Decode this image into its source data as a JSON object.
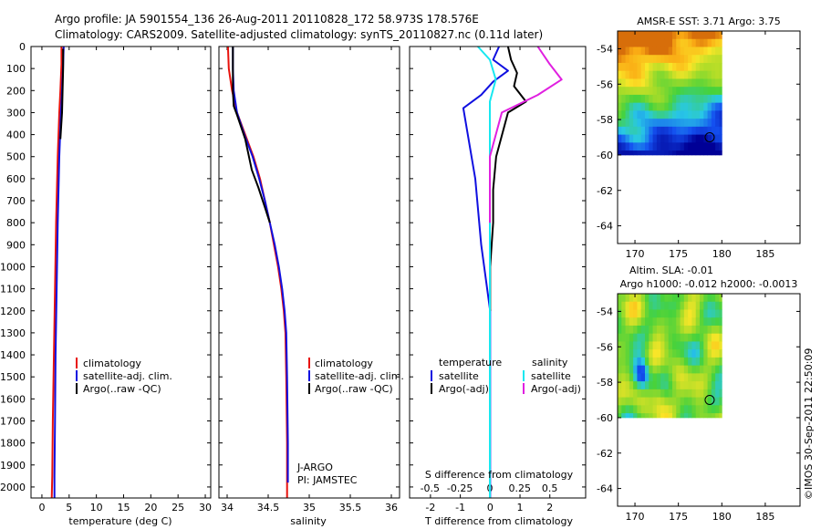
{
  "header": {
    "line1": "Argo profile: JA 5901554_136 26-Aug-2011 20110828_172 58.973S 178.576E",
    "line2": "Climatology: CARS2009. Satellite-adjusted climatology: synTS_20110827.nc (0.11d later)"
  },
  "watermark": "©IMOS 30-Sep-2011 22:50:09",
  "colors": {
    "climatology": "#e8120c",
    "satellite": "#1010e0",
    "argo": "#000000",
    "satellite_diff_S": "#18e8f0",
    "argo_diff_S": "#e020e0"
  },
  "depth_axis": {
    "ylim": [
      0,
      2050
    ],
    "ticks": [
      0,
      100,
      200,
      300,
      400,
      500,
      600,
      700,
      800,
      900,
      1000,
      1100,
      1200,
      1300,
      1400,
      1500,
      1600,
      1700,
      1800,
      1900,
      2000
    ]
  },
  "chart_data": [
    {
      "type": "line",
      "id": "temperature",
      "xlabel": "temperature (deg C)",
      "xlim": [
        -2,
        31
      ],
      "xticks": [
        0,
        5,
        10,
        15,
        20,
        25,
        30
      ],
      "legend": [
        "climatology",
        "satellite-adj. clim.",
        "Argo(..raw -QC)"
      ],
      "series": [
        {
          "name": "climatology",
          "color": "#e8120c",
          "x": [
            3.6,
            3.6,
            3.4,
            3.2,
            2.9,
            2.6,
            2.4,
            2.2,
            2.0,
            1.9,
            1.8
          ],
          "y": [
            0,
            80,
            200,
            300,
            500,
            800,
            1100,
            1400,
            1700,
            1950,
            2050
          ]
        },
        {
          "name": "satellite-adj. clim.",
          "color": "#1010e0",
          "x": [
            4.0,
            3.9,
            3.7,
            3.5,
            3.2,
            2.9,
            2.7,
            2.5,
            2.4,
            2.3,
            2.3
          ],
          "y": [
            0,
            80,
            200,
            300,
            500,
            800,
            1100,
            1400,
            1700,
            1950,
            2050
          ]
        },
        {
          "name": "Argo(..raw -QC)",
          "color": "#000000",
          "x": [
            3.9,
            3.9,
            3.8,
            3.7,
            3.4
          ],
          "y": [
            10,
            100,
            200,
            300,
            420
          ]
        }
      ]
    },
    {
      "type": "line",
      "id": "salinity",
      "xlabel": "salinity",
      "xlim": [
        33.9,
        36.1
      ],
      "xticks": [
        34,
        34.5,
        35,
        35.5,
        36
      ],
      "legend": [
        "climatology",
        "satellite-adj. clim.",
        "Argo(..raw -QC)"
      ],
      "annotation": [
        "J-ARGO",
        "PI: JAMSTEC"
      ],
      "series": [
        {
          "name": "climatology",
          "color": "#e8120c",
          "x": [
            34.01,
            34.02,
            34.06,
            34.12,
            34.22,
            34.32,
            34.4,
            34.46,
            34.52,
            34.57,
            34.62,
            34.66,
            34.69,
            34.71,
            34.72,
            34.73,
            34.73
          ],
          "y": [
            0,
            100,
            200,
            300,
            400,
            500,
            600,
            700,
            800,
            900,
            1000,
            1100,
            1200,
            1300,
            1500,
            1800,
            2050
          ]
        },
        {
          "name": "satellite-adj. clim.",
          "color": "#1010e0",
          "x": [
            34.07,
            34.07,
            34.08,
            34.12,
            34.21,
            34.31,
            34.39,
            34.46,
            34.52,
            34.58,
            34.63,
            34.67,
            34.7,
            34.72,
            34.73,
            34.74,
            34.74
          ],
          "y": [
            0,
            100,
            200,
            300,
            400,
            500,
            600,
            700,
            800,
            900,
            1000,
            1100,
            1200,
            1300,
            1500,
            1800,
            1980
          ]
        },
        {
          "name": "Argo(..raw -QC)",
          "color": "#000000",
          "x": [
            34.07,
            34.07,
            34.07,
            34.08,
            34.12,
            34.22,
            34.3,
            34.38,
            34.46,
            34.52
          ],
          "y": [
            0,
            100,
            200,
            270,
            310,
            420,
            560,
            640,
            730,
            800
          ]
        }
      ]
    },
    {
      "type": "line",
      "id": "difference",
      "xlabel": "T difference from climatology",
      "x2label": "S difference from climatology",
      "xlim": [
        -2.7,
        3.2
      ],
      "xticks": [
        -2,
        -1,
        0,
        1,
        2
      ],
      "x2ticks": [
        -0.5,
        -0.25,
        0,
        0.25,
        0.5
      ],
      "legend_temperature_title": "temperature",
      "legend_salinity_title": "salinity",
      "legend_temperature": [
        "satellite",
        "Argo(-adj)"
      ],
      "legend_salinity": [
        "satellite",
        "Argo(-adj)"
      ],
      "series": [
        {
          "name": "T satellite",
          "color": "#1010e0",
          "x": [
            0.3,
            0.1,
            0.6,
            0.1,
            -0.3,
            -0.9,
            -0.5,
            -0.3,
            0.0,
            0.0,
            0.0
          ],
          "y": [
            0,
            60,
            110,
            160,
            220,
            280,
            600,
            900,
            1200,
            1600,
            2050
          ]
        },
        {
          "name": "T Argo(-adj)",
          "color": "#000000",
          "x": [
            0.6,
            0.7,
            0.9,
            0.8,
            1.2,
            0.6,
            0.2,
            0.1,
            0.1,
            0.0,
            0.0
          ],
          "y": [
            0,
            60,
            120,
            180,
            250,
            300,
            500,
            650,
            800,
            1000,
            1200
          ]
        },
        {
          "name": "S satellite",
          "color": "#18e8f0",
          "x": [
            -0.1,
            0.0,
            0.05,
            0.0,
            0.0,
            0.0,
            0.0,
            0.0,
            0.0
          ],
          "y": [
            0,
            60,
            150,
            250,
            400,
            700,
            1100,
            1600,
            2050
          ]
        },
        {
          "name": "S Argo(-adj)",
          "color": "#e020e0",
          "x": [
            0.4,
            0.5,
            0.6,
            0.4,
            0.1,
            0.0,
            0.0
          ],
          "y": [
            0,
            80,
            150,
            220,
            300,
            500,
            800
          ]
        }
      ]
    },
    {
      "type": "heatmap",
      "id": "sst_map",
      "title": "AMSR-E SST: 3.71  Argo: 3.75",
      "xlim": [
        168,
        189
      ],
      "ylim": [
        -65,
        -53
      ],
      "xticks": [
        170,
        175,
        180,
        185
      ],
      "yticks": [
        -54,
        -56,
        -58,
        -60,
        -62,
        -64
      ],
      "data_extent": {
        "lon": [
          168,
          180
        ],
        "lat": [
          -60,
          -53
        ]
      },
      "marker": {
        "lon": 178.6,
        "lat": -59.0
      }
    },
    {
      "type": "heatmap",
      "id": "sla_map",
      "title": "Altim. SLA: -0.01",
      "subtitle": "Argo h1000: -0.012 h2000: -0.0013",
      "xlim": [
        168,
        189
      ],
      "ylim": [
        -65,
        -53
      ],
      "xticks": [
        170,
        175,
        180,
        185
      ],
      "yticks": [
        -54,
        -56,
        -58,
        -60,
        -62,
        -64
      ],
      "data_extent": {
        "lon": [
          168,
          180
        ],
        "lat": [
          -60,
          -53
        ]
      },
      "marker": {
        "lon": 178.6,
        "lat": -59.0
      }
    }
  ]
}
